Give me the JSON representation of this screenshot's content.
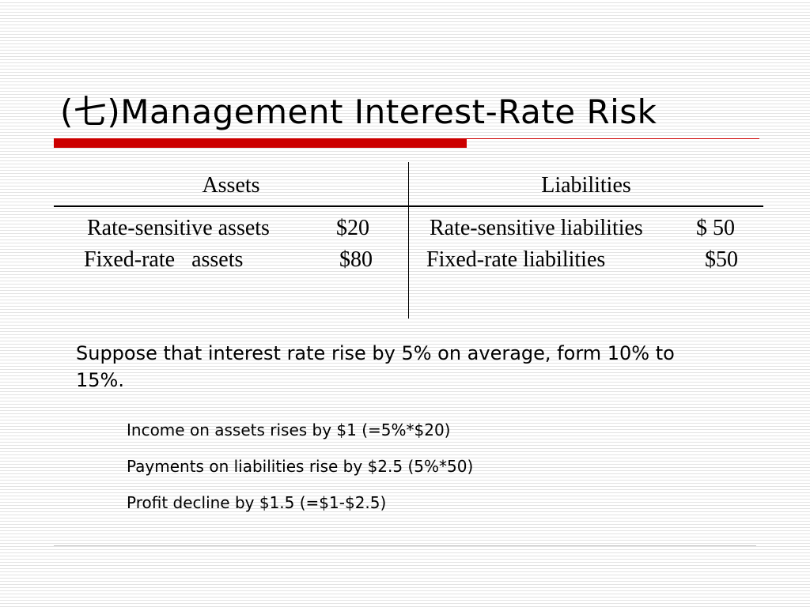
{
  "slide": {
    "title": "(七)Management Interest-Rate Risk",
    "accent_color": "#cc0000"
  },
  "balance_table": {
    "headers": {
      "assets": "Assets",
      "liabilities": "Liabilities"
    },
    "assets_rows": [
      {
        "label": "Rate-sensitive assets",
        "value": "$20"
      },
      {
        "label": "Fixed-rate   assets",
        "value": "$80"
      }
    ],
    "liabilities_rows": [
      {
        "label": "Rate-sensitive liabilities",
        "value": "$ 50"
      },
      {
        "label": "Fixed-rate liabilities",
        "value": "$50"
      }
    ]
  },
  "body": {
    "paragraph": "Suppose that interest rate rise by 5% on average, form 10% to 15%.",
    "bullets": [
      "Income on assets rises by $1 (=5%*$20)",
      "Payments on liabilities rise by $2.5 (5%*50)",
      "Profit decline by $1.5 (=$1-$2.5)"
    ]
  }
}
